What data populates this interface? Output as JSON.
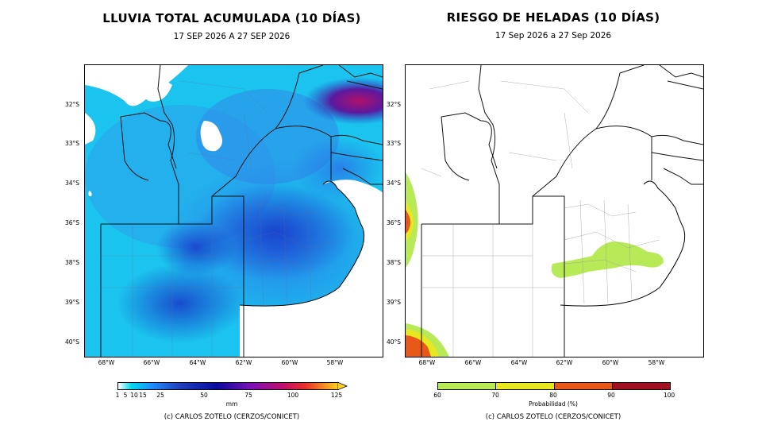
{
  "left": {
    "title": "LLUVIA TOTAL ACUMULADA (10 DÍAS)",
    "subtitle": "17 SEP 2026 A 27 SEP 2026",
    "lat_ticks": [
      "32°S",
      "33°S",
      "34°S",
      "36°S",
      "38°S",
      "39°S",
      "40°S"
    ],
    "lon_ticks": [
      "68°W",
      "66°W",
      "64°W",
      "62°W",
      "60°W",
      "58°W"
    ],
    "colorbar": {
      "ticks": [
        "1",
        "5",
        "10",
        "15",
        "25",
        "50",
        "75",
        "100",
        "125"
      ],
      "unit": "mm",
      "colors": [
        "#ffffff",
        "#00d8f0",
        "#1e90ff",
        "#2040c0",
        "#0a0aa0",
        "#7a10b8",
        "#c0106a",
        "#e8302a",
        "#ffd020"
      ]
    },
    "credit": "(c) CARLOS ZOTELO (CERZOS/CONICET)"
  },
  "right": {
    "title": "RIESGO DE HELADAS (10 DÍAS)",
    "subtitle": "17 Sep 2026 a 27 Sep 2026",
    "lat_ticks": [
      "32°S",
      "33°S",
      "34°S",
      "36°S",
      "38°S",
      "39°S",
      "40°S"
    ],
    "lon_ticks": [
      "68°W",
      "66°W",
      "64°W",
      "62°W",
      "60°W",
      "58°W"
    ],
    "colorbar": {
      "ticks": [
        "60",
        "70",
        "80",
        "90",
        "100"
      ],
      "label": "Probabilidad (%)",
      "colors": [
        "#b8ea58",
        "#e8e820",
        "#e85818",
        "#a01020"
      ]
    },
    "credit": "(c) CARLOS ZOTELO (CERZOS/CONICET)"
  }
}
